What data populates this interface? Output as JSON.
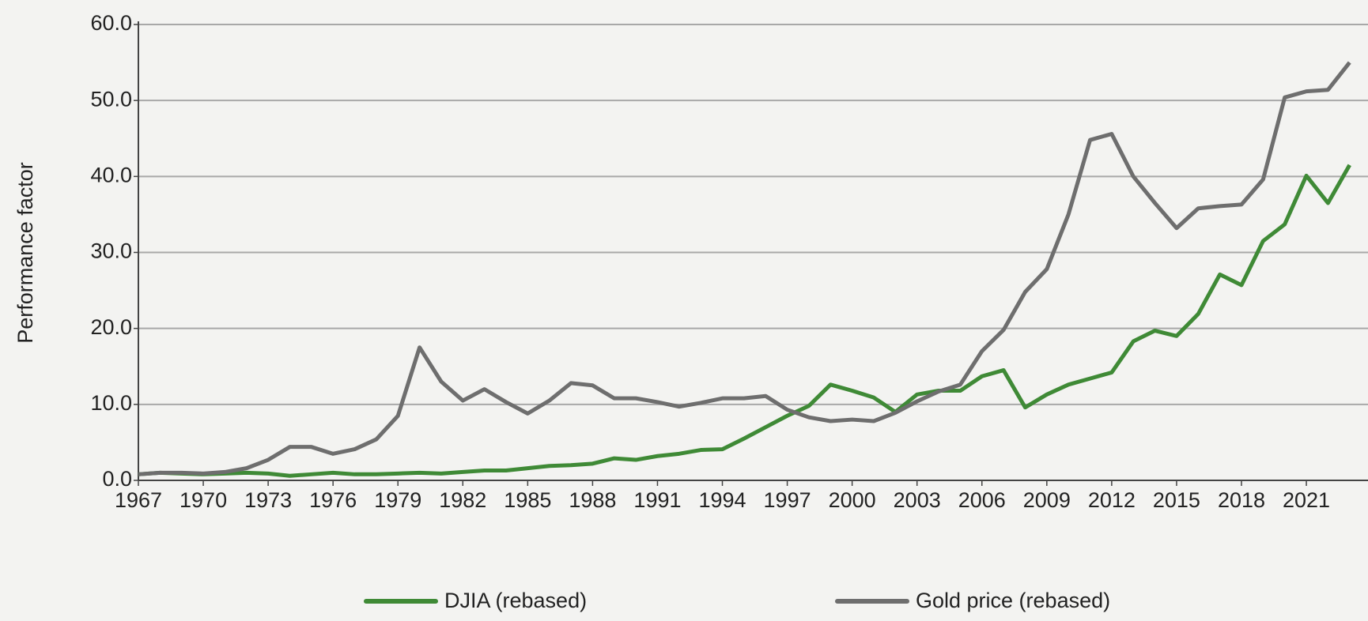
{
  "chart_data": {
    "type": "line",
    "y_label": "Performance factor",
    "x": [
      1967,
      1968,
      1969,
      1970,
      1971,
      1972,
      1973,
      1974,
      1975,
      1976,
      1977,
      1978,
      1979,
      1980,
      1981,
      1982,
      1983,
      1984,
      1985,
      1986,
      1987,
      1988,
      1989,
      1990,
      1991,
      1992,
      1993,
      1994,
      1995,
      1996,
      1997,
      1998,
      1999,
      2000,
      2001,
      2002,
      2003,
      2004,
      2005,
      2006,
      2007,
      2008,
      2009,
      2010,
      2011,
      2012,
      2013,
      2014,
      2015,
      2016,
      2017,
      2018,
      2019,
      2020,
      2021,
      2022,
      2023
    ],
    "series": [
      {
        "name": "DJIA (rebased)",
        "color": "#3f8a36",
        "values": [
          0.8,
          1.0,
          0.9,
          0.8,
          0.9,
          1.0,
          0.9,
          0.6,
          0.8,
          1.0,
          0.8,
          0.8,
          0.9,
          1.0,
          0.9,
          1.1,
          1.3,
          1.3,
          1.6,
          1.9,
          2.0,
          2.2,
          2.9,
          2.7,
          3.2,
          3.5,
          4.0,
          4.1,
          5.5,
          7.0,
          8.5,
          9.8,
          12.6,
          11.8,
          10.9,
          9.0,
          11.3,
          11.8,
          11.8,
          13.7,
          14.5,
          9.6,
          11.3,
          12.6,
          13.4,
          14.2,
          18.3,
          19.7,
          19.0,
          21.9,
          27.1,
          25.7,
          31.5,
          33.7,
          40.1,
          36.5,
          41.5
        ]
      },
      {
        "name": "Gold price (rebased)",
        "color": "#6e6e6e",
        "values": [
          0.8,
          1.0,
          1.0,
          0.9,
          1.1,
          1.6,
          2.7,
          4.4,
          4.4,
          3.5,
          4.1,
          5.4,
          8.5,
          17.5,
          13.0,
          10.5,
          12.0,
          10.3,
          8.8,
          10.5,
          12.8,
          12.5,
          10.8,
          10.8,
          10.3,
          9.7,
          10.2,
          10.8,
          10.8,
          11.1,
          9.3,
          8.3,
          7.8,
          8.0,
          7.8,
          8.9,
          10.4,
          11.7,
          12.6,
          17.0,
          19.8,
          24.8,
          27.8,
          35.0,
          44.8,
          45.6,
          40.0,
          36.5,
          33.2,
          35.8,
          36.1,
          36.3,
          39.6,
          50.4,
          51.2,
          51.4,
          55.0
        ]
      }
    ],
    "xlim": [
      1967,
      2023.85
    ],
    "xticks": [
      1967,
      1970,
      1973,
      1976,
      1979,
      1982,
      1985,
      1988,
      1991,
      1994,
      1997,
      2000,
      2003,
      2006,
      2009,
      2012,
      2015,
      2018,
      2021
    ],
    "ylim": [
      0,
      60
    ],
    "yticks": [
      {
        "value": 0,
        "label": "0.0"
      },
      {
        "value": 10,
        "label": "10.0"
      },
      {
        "value": 20,
        "label": "20.0"
      },
      {
        "value": 30,
        "label": "30.0"
      },
      {
        "value": 40,
        "label": "40.0"
      },
      {
        "value": 50,
        "label": "50.0"
      },
      {
        "value": 60,
        "label": "60.0"
      }
    ],
    "grid": true,
    "legend": "bottom"
  }
}
